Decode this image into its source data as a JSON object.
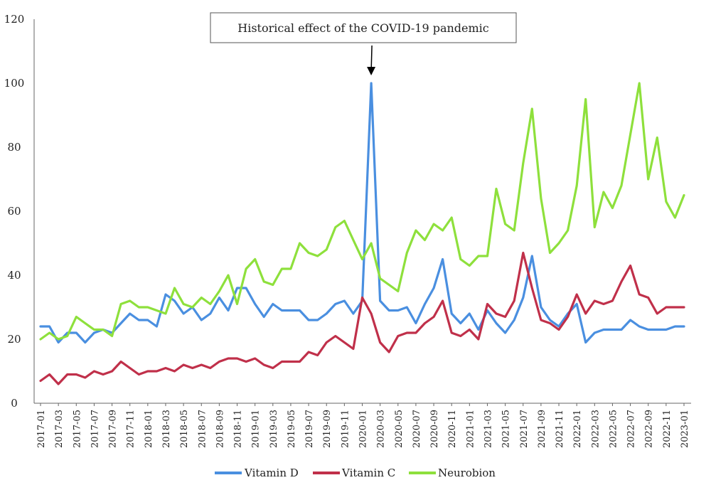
{
  "chart_data": {
    "type": "line",
    "title": "",
    "xlabel": "",
    "ylabel": "",
    "ylim": [
      0,
      120
    ],
    "yticks": [
      0,
      20,
      40,
      60,
      80,
      100,
      120
    ],
    "grid": false,
    "legend_position": "bottom",
    "annotation": {
      "text": "Historical effect of the COVID-19 pandemic",
      "target_x": "2020-02"
    },
    "x": [
      "2017-01",
      "2017-02",
      "2017-03",
      "2017-04",
      "2017-05",
      "2017-06",
      "2017-07",
      "2017-08",
      "2017-09",
      "2017-10",
      "2017-11",
      "2017-12",
      "2018-01",
      "2018-02",
      "2018-03",
      "2018-04",
      "2018-05",
      "2018-06",
      "2018-07",
      "2018-08",
      "2018-09",
      "2018-10",
      "2018-11",
      "2018-12",
      "2019-01",
      "2019-02",
      "2019-03",
      "2019-04",
      "2019-05",
      "2019-06",
      "2019-07",
      "2019-08",
      "2019-09",
      "2019-10",
      "2019-11",
      "2019-12",
      "2020-01",
      "2020-02",
      "2020-03",
      "2020-04",
      "2020-05",
      "2020-06",
      "2020-07",
      "2020-08",
      "2020-09",
      "2020-10",
      "2020-11",
      "2020-12",
      "2021-01",
      "2021-02",
      "2021-03",
      "2021-04",
      "2021-05",
      "2021-06",
      "2021-07",
      "2021-08",
      "2021-09",
      "2021-10",
      "2021-11",
      "2021-12",
      "2022-01",
      "2022-02",
      "2022-03",
      "2022-04",
      "2022-05",
      "2022-06",
      "2022-07",
      "2022-08",
      "2022-09",
      "2022-10",
      "2022-11",
      "2022-12",
      "2023-01"
    ],
    "xtick_labels": [
      "2017-01",
      "2017-03",
      "2017-05",
      "2017-07",
      "2017-09",
      "2017-11",
      "2018-01",
      "2018-03",
      "2018-05",
      "2018-07",
      "2018-09",
      "2018-11",
      "2019-01",
      "2019-03",
      "2019-05",
      "2019-07",
      "2019-09",
      "2019-11",
      "2020-01",
      "2020-03",
      "2020-05",
      "2020-07",
      "2020-09",
      "2020-11",
      "2021-01",
      "2021-03",
      "2021-05",
      "2021-07",
      "2021-09",
      "2021-11",
      "2022-01",
      "2022-03",
      "2022-05",
      "2022-07",
      "2022-09",
      "2022-11",
      "2023-01"
    ],
    "series": [
      {
        "name": "Vitamin D",
        "color": "#4a8fe0",
        "values": [
          24,
          24,
          19,
          22,
          22,
          19,
          22,
          23,
          22,
          25,
          28,
          26,
          26,
          24,
          34,
          32,
          28,
          30,
          26,
          28,
          33,
          29,
          36,
          36,
          31,
          27,
          31,
          29,
          29,
          29,
          26,
          26,
          28,
          31,
          32,
          28,
          32,
          100,
          32,
          29,
          29,
          30,
          25,
          31,
          36,
          45,
          28,
          25,
          28,
          23,
          29,
          25,
          22,
          26,
          33,
          46,
          30,
          26,
          24,
          28,
          31,
          19,
          22,
          23,
          23,
          23,
          26,
          24,
          23,
          23,
          23,
          24,
          24
        ]
      },
      {
        "name": "Vitamin C",
        "color": "#c0304a",
        "values": [
          7,
          9,
          6,
          9,
          9,
          8,
          10,
          9,
          10,
          13,
          11,
          9,
          10,
          10,
          11,
          10,
          12,
          11,
          12,
          11,
          13,
          14,
          14,
          13,
          14,
          12,
          11,
          13,
          13,
          13,
          16,
          15,
          19,
          21,
          19,
          17,
          33,
          28,
          19,
          16,
          21,
          22,
          22,
          25,
          27,
          32,
          22,
          21,
          23,
          20,
          31,
          28,
          27,
          32,
          47,
          36,
          26,
          25,
          23,
          27,
          34,
          28,
          32,
          31,
          32,
          38,
          43,
          34,
          33,
          28,
          30,
          30,
          30
        ]
      },
      {
        "name": "Neurobion",
        "color": "#8ee03c",
        "values": [
          20,
          22,
          20,
          21,
          27,
          25,
          23,
          23,
          21,
          31,
          32,
          30,
          30,
          29,
          28,
          36,
          31,
          30,
          33,
          31,
          35,
          40,
          31,
          42,
          45,
          38,
          37,
          42,
          42,
          50,
          47,
          46,
          48,
          55,
          57,
          51,
          45,
          50,
          39,
          37,
          35,
          47,
          54,
          51,
          56,
          54,
          58,
          45,
          43,
          46,
          46,
          67,
          56,
          54,
          75,
          92,
          64,
          47,
          50,
          54,
          68,
          95,
          55,
          66,
          61,
          68,
          84,
          100,
          70,
          83,
          63,
          58,
          65
        ]
      }
    ]
  },
  "legend": {
    "items": [
      "Vitamin D",
      "Vitamin C",
      "Neurobion"
    ]
  }
}
